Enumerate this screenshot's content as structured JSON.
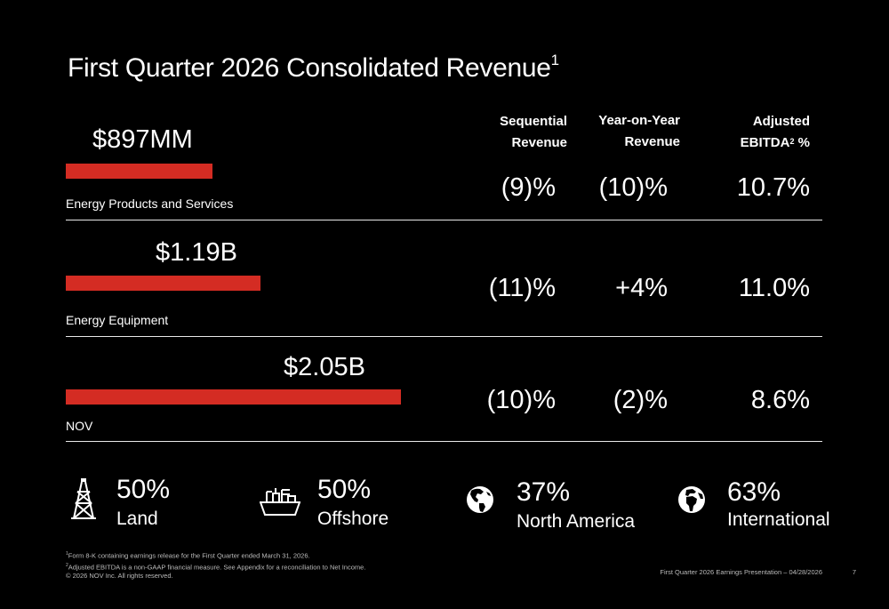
{
  "title": {
    "text": "First Quarter 2026 Consolidated Revenue",
    "superscript": "1"
  },
  "columns": {
    "sequential": [
      "Sequential",
      "Revenue"
    ],
    "yoy": [
      "Year-on-Year",
      "Revenue"
    ],
    "ebitda": {
      "line1": "Adjusted",
      "line2_text": "EBITDA",
      "line2_sup": "2",
      "line2_suffix": " %"
    }
  },
  "bar_color": "#d42c23",
  "segments": [
    {
      "amount": "$897MM",
      "revenue_musd": 897,
      "label": "Energy Products and Services",
      "sequential": "(9)%",
      "yoy": "(10)%",
      "ebitda": "10.7%"
    },
    {
      "amount": "$1.19B",
      "revenue_musd": 1190,
      "label": "Energy Equipment",
      "sequential": "(11)%",
      "yoy": "+4%",
      "ebitda": "11.0%"
    },
    {
      "amount": "$2.05B",
      "revenue_musd": 2050,
      "label": "NOV",
      "sequential": "(10)%",
      "yoy": "(2)%",
      "ebitda": "8.6%"
    }
  ],
  "splits": [
    {
      "icon": "drilling-rig-icon",
      "pct": "50%",
      "label": "Land"
    },
    {
      "icon": "offshore-platform-icon",
      "pct": "50%",
      "label": "Offshore"
    },
    {
      "icon": "globe-americas-icon",
      "pct": "37%",
      "label": "North America"
    },
    {
      "icon": "globe-africa-icon",
      "pct": "63%",
      "label": "International"
    }
  ],
  "footnotes": [
    {
      "sup": "1",
      "text": "Form 8-K containing earnings release for the First Quarter ended March 31, 2026."
    },
    {
      "sup": "2",
      "text": "Adjusted EBITDA is a non-GAAP financial measure. See Appendix for a reconciliation to Net Income."
    },
    {
      "sup": "",
      "text": "© 2026 NOV Inc. All rights reserved."
    }
  ],
  "footer": {
    "presentation": "First Quarter 2026 Earnings Presentation – 04/28/2026",
    "page": "7"
  }
}
